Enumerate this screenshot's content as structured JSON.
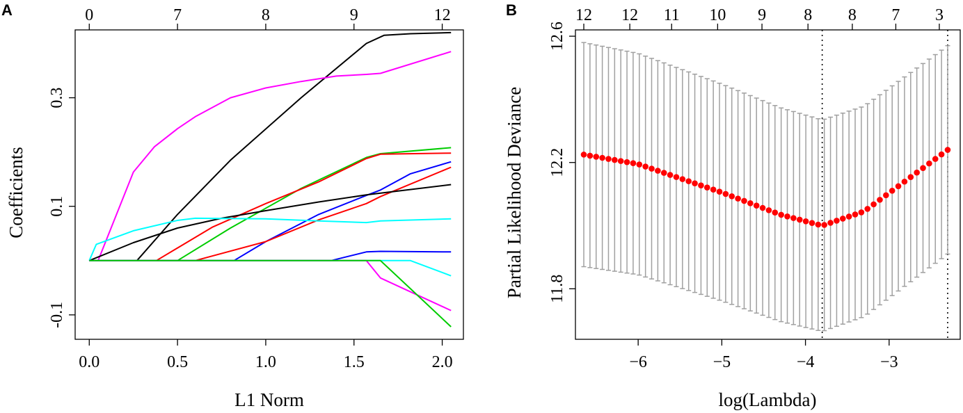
{
  "chart_data": [
    {
      "type": "line",
      "panel_label": "A",
      "xlabel": "L1 Norm",
      "ylabel": "Coefficients",
      "xlim": [
        -0.08,
        2.12
      ],
      "ylim": [
        -0.145,
        0.425
      ],
      "x_ticks": [
        0.0,
        0.5,
        1.0,
        1.5,
        2.0
      ],
      "x_tick_labels": [
        "0.0",
        "0.5",
        "1.0",
        "1.5",
        "2.0"
      ],
      "y_ticks": [
        -0.1,
        0.1,
        0.3
      ],
      "y_tick_labels": [
        "-0.1",
        "0.1",
        "0.3"
      ],
      "top_axis": {
        "positions": [
          0.0,
          0.5,
          1.0,
          1.5,
          2.0
        ],
        "labels": [
          "0",
          "7",
          "8",
          "9",
          "12"
        ]
      },
      "series": [
        {
          "name": "black-1",
          "color": "#000000",
          "points": [
            [
              0,
              0
            ],
            [
              0.27,
              0
            ],
            [
              0.5,
              0.085
            ],
            [
              0.8,
              0.185
            ],
            [
              1.2,
              0.3
            ],
            [
              1.57,
              0.4
            ],
            [
              1.67,
              0.415
            ],
            [
              1.82,
              0.418
            ],
            [
              2.05,
              0.42
            ]
          ]
        },
        {
          "name": "magenta-1",
          "color": "#ff00ff",
          "points": [
            [
              0,
              0
            ],
            [
              0.05,
              0
            ],
            [
              0.25,
              0.163
            ],
            [
              0.37,
              0.21
            ],
            [
              0.5,
              0.243
            ],
            [
              0.6,
              0.265
            ],
            [
              0.8,
              0.3
            ],
            [
              1.0,
              0.318
            ],
            [
              1.2,
              0.33
            ],
            [
              1.4,
              0.34
            ],
            [
              1.57,
              0.343
            ],
            [
              1.65,
              0.345
            ],
            [
              2.05,
              0.385
            ]
          ]
        },
        {
          "name": "green-1",
          "color": "#00cc00",
          "points": [
            [
              0,
              0
            ],
            [
              0.5,
              0
            ],
            [
              0.8,
              0.06
            ],
            [
              1.2,
              0.133
            ],
            [
              1.57,
              0.19
            ],
            [
              1.65,
              0.197
            ],
            [
              2.05,
              0.208
            ]
          ]
        },
        {
          "name": "red-1",
          "color": "#ff0000",
          "points": [
            [
              0,
              0
            ],
            [
              0.38,
              0
            ],
            [
              0.7,
              0.062
            ],
            [
              1.0,
              0.105
            ],
            [
              1.3,
              0.145
            ],
            [
              1.57,
              0.188
            ],
            [
              1.65,
              0.196
            ],
            [
              2.05,
              0.198
            ]
          ]
        },
        {
          "name": "blue-1",
          "color": "#0000ff",
          "points": [
            [
              0,
              0
            ],
            [
              0.82,
              0
            ],
            [
              1.0,
              0.035
            ],
            [
              1.3,
              0.085
            ],
            [
              1.57,
              0.12
            ],
            [
              1.65,
              0.13
            ],
            [
              1.82,
              0.16
            ],
            [
              2.05,
              0.182
            ]
          ]
        },
        {
          "name": "red-2",
          "color": "#ff0000",
          "points": [
            [
              0,
              0
            ],
            [
              0.6,
              0
            ],
            [
              1.0,
              0.035
            ],
            [
              1.3,
              0.075
            ],
            [
              1.57,
              0.105
            ],
            [
              1.65,
              0.118
            ],
            [
              2.05,
              0.172
            ]
          ]
        },
        {
          "name": "black-2",
          "color": "#000000",
          "points": [
            [
              0,
              0
            ],
            [
              0.25,
              0.033
            ],
            [
              0.5,
              0.06
            ],
            [
              0.75,
              0.078
            ],
            [
              1.0,
              0.092
            ],
            [
              1.3,
              0.108
            ],
            [
              1.57,
              0.121
            ],
            [
              2.05,
              0.14
            ]
          ]
        },
        {
          "name": "cyan-1",
          "color": "#00ffff",
          "points": [
            [
              0,
              0
            ],
            [
              0.04,
              0.03
            ],
            [
              0.25,
              0.055
            ],
            [
              0.5,
              0.074
            ],
            [
              0.6,
              0.078
            ],
            [
              1.0,
              0.077
            ],
            [
              1.3,
              0.073
            ],
            [
              1.57,
              0.07
            ],
            [
              1.65,
              0.073
            ],
            [
              2.05,
              0.077
            ]
          ]
        },
        {
          "name": "blue-2",
          "color": "#0000ff",
          "points": [
            [
              0,
              0
            ],
            [
              1.37,
              0
            ],
            [
              1.57,
              0.016
            ],
            [
              1.65,
              0.017
            ],
            [
              2.05,
              0.016
            ]
          ]
        },
        {
          "name": "cyan-2",
          "color": "#00ffff",
          "points": [
            [
              0,
              0
            ],
            [
              1.82,
              0
            ],
            [
              2.05,
              -0.028
            ]
          ]
        },
        {
          "name": "magenta-2",
          "color": "#ff00ff",
          "points": [
            [
              0,
              0
            ],
            [
              1.57,
              0
            ],
            [
              1.65,
              -0.032
            ],
            [
              2.05,
              -0.092
            ]
          ]
        },
        {
          "name": "green-2",
          "color": "#00cc00",
          "points": [
            [
              0,
              0
            ],
            [
              1.65,
              0
            ],
            [
              2.05,
              -0.122
            ]
          ]
        }
      ]
    },
    {
      "type": "scatter",
      "panel_label": "B",
      "xlabel": "log(Lambda)",
      "ylabel": "Partial Likelihood Deviance",
      "xlim": [
        -6.75,
        -2.15
      ],
      "ylim": [
        11.64,
        12.62
      ],
      "x_ticks": [
        -6,
        -5,
        -4,
        -3
      ],
      "x_tick_labels": [
        "−6",
        "−5",
        "−4",
        "−3"
      ],
      "y_ticks": [
        11.8,
        12.2,
        12.6
      ],
      "y_tick_labels": [
        "11.8",
        "12.2",
        "12.6"
      ],
      "top_axis": {
        "positions": [
          -6.65,
          -6.1,
          -5.6,
          -5.05,
          -4.52,
          -3.97,
          -3.44,
          -2.92,
          -2.4
        ],
        "labels": [
          "12",
          "12",
          "11",
          "10",
          "9",
          "8",
          "8",
          "7",
          "3"
        ]
      },
      "vlines": [
        -3.8,
        -2.3
      ],
      "lambda_range": [
        -6.65,
        -2.3
      ],
      "point_count": 60,
      "mean_curve": {
        "anchors_x": [
          -6.65,
          -6.0,
          -5.0,
          -4.3,
          -3.8,
          -3.3,
          -2.3
        ],
        "anchors_y": [
          12.225,
          12.195,
          12.105,
          12.035,
          12.0,
          12.045,
          12.24
        ]
      },
      "halfwidth_curve": {
        "anchors_x": [
          -6.65,
          -3.8,
          -2.3
        ],
        "anchors_y": [
          0.355,
          0.335,
          0.33
        ]
      },
      "point_color": "#ff0000",
      "errorbar_color": "#a0a0a0"
    }
  ]
}
